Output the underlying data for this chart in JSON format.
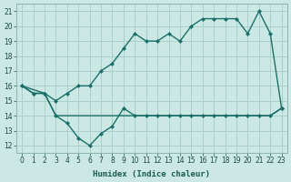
{
  "background_color": "#cce8e5",
  "grid_color": "#aad0cc",
  "line_color": "#1a7068",
  "xlim": [
    -0.5,
    23.5
  ],
  "ylim": [
    11.5,
    21.5
  ],
  "xticks": [
    0,
    1,
    2,
    3,
    4,
    5,
    6,
    7,
    8,
    9,
    10,
    11,
    12,
    13,
    14,
    15,
    16,
    17,
    18,
    19,
    20,
    21,
    22,
    23
  ],
  "yticks": [
    12,
    13,
    14,
    15,
    16,
    17,
    18,
    19,
    20,
    21
  ],
  "xlabel": "Humidex (Indice chaleur)",
  "line_flat_x": [
    0,
    2,
    3,
    4,
    5,
    6,
    7,
    8,
    9,
    10,
    11,
    12,
    13,
    14,
    15,
    16,
    17,
    18,
    19,
    20,
    21,
    22,
    23
  ],
  "line_flat_y": [
    16.0,
    15.5,
    14.0,
    14.0,
    14.0,
    14.0,
    14.0,
    14.0,
    14.0,
    14.0,
    14.0,
    14.0,
    14.0,
    14.0,
    14.0,
    14.0,
    14.0,
    14.0,
    14.0,
    14.0,
    14.0,
    14.0,
    14.5
  ],
  "line_dip_x": [
    0,
    1,
    2,
    3,
    4,
    5,
    6,
    7,
    8,
    9,
    10,
    11,
    12,
    13,
    14,
    15,
    16,
    17,
    18,
    19,
    20,
    21,
    22,
    23
  ],
  "line_dip_y": [
    16.0,
    15.5,
    15.5,
    14.0,
    13.5,
    12.5,
    12.0,
    12.8,
    13.3,
    14.5,
    14.0,
    14.0,
    14.0,
    14.0,
    14.0,
    14.0,
    14.0,
    14.0,
    14.0,
    14.0,
    14.0,
    14.0,
    14.0,
    14.5
  ],
  "line_rise_x": [
    0,
    1,
    2,
    3,
    4,
    5,
    6,
    7,
    8,
    9,
    10,
    11,
    12,
    13,
    14,
    15,
    16,
    17,
    18,
    19,
    20,
    21,
    22,
    23
  ],
  "line_rise_y": [
    16.0,
    15.5,
    15.5,
    15.0,
    15.5,
    16.0,
    16.0,
    17.0,
    17.5,
    18.5,
    19.5,
    19.0,
    19.0,
    19.5,
    19.0,
    20.0,
    20.5,
    20.5,
    20.5,
    20.5,
    19.5,
    21.0,
    19.5,
    14.5
  ]
}
